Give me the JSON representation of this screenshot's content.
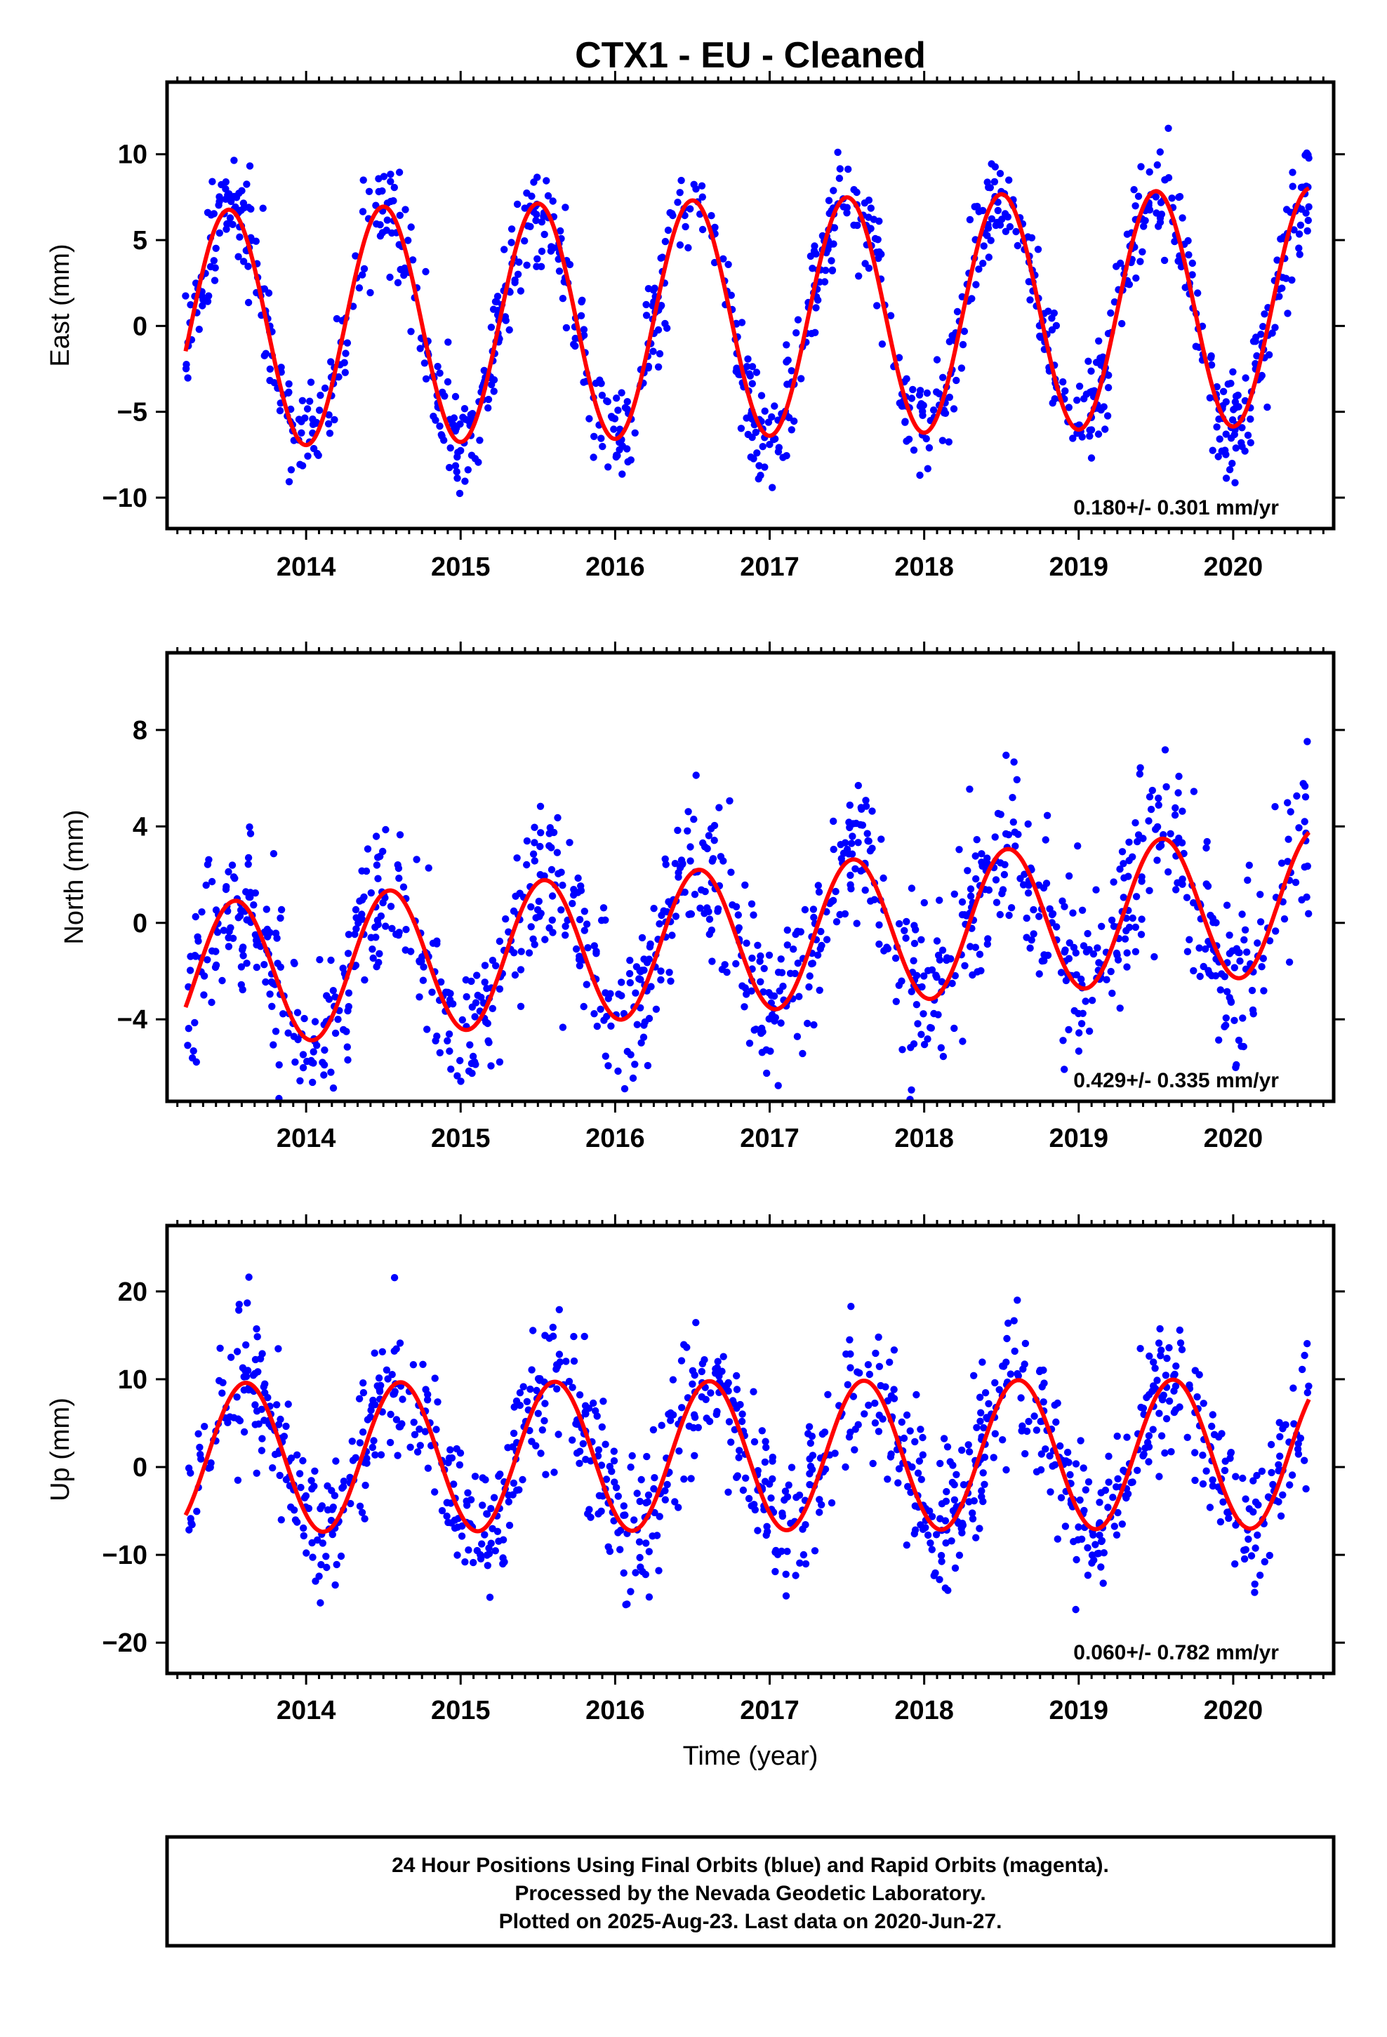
{
  "title": "CTX1  - EU - Cleaned",
  "x_axis_label": "Time (year)",
  "footer": {
    "line1": "24 Hour Positions Using Final Orbits (blue) and Rapid Orbits (magenta).",
    "line2": "Processed by the Nevada Geodetic Laboratory.",
    "line3": "Plotted on 2025-Aug-23. Last data on 2020-Jun-27."
  },
  "colors": {
    "points": "#0000ff",
    "fit": "#ff0000",
    "frame": "#000000"
  },
  "chart_data": [
    {
      "type": "scatter",
      "name": "east",
      "ylabel": "East (mm)",
      "rate": "0.180+/- 0.301 mm/yr",
      "xlim": [
        2013.1,
        2020.65
      ],
      "ylim": [
        -11.8,
        14.2
      ],
      "yticks": [
        -10,
        -5,
        0,
        5,
        10
      ],
      "xticks": [
        2014,
        2015,
        2016,
        2017,
        2018,
        2019,
        2020
      ],
      "data_range": [
        2013.22,
        2020.49
      ],
      "points_per_year": 150,
      "fit_model": {
        "offset": 0.5,
        "trend": 0.18,
        "annual_amplitude": 6.9,
        "peak_phase_fraction": 0.5
      },
      "scatter_std": 1.6,
      "seed": 11
    },
    {
      "type": "scatter",
      "name": "north",
      "ylabel": "North (mm)",
      "rate": "0.429+/- 0.335 mm/yr",
      "xlim": [
        2013.1,
        2020.65
      ],
      "ylim": [
        -7.4,
        11.2
      ],
      "yticks": [
        -4,
        0,
        4,
        8
      ],
      "xticks": [
        2014,
        2015,
        2016,
        2017,
        2018,
        2019,
        2020
      ],
      "data_range": [
        2013.22,
        2020.49
      ],
      "points_per_year": 150,
      "fit_model": {
        "offset": -0.6,
        "trend": 0.429,
        "annual_amplitude": 3.0,
        "peak_phase_fraction": 0.54
      },
      "scatter_std": 1.7,
      "seed": 23
    },
    {
      "type": "scatter",
      "name": "up",
      "ylabel": "Up (mm)",
      "rate": "0.060+/- 0.782 mm/yr",
      "xlim": [
        2013.1,
        2020.65
      ],
      "ylim": [
        -23.5,
        27.5
      ],
      "yticks": [
        -20,
        -10,
        0,
        10,
        20
      ],
      "xticks": [
        2014,
        2015,
        2016,
        2017,
        2018,
        2019,
        2020
      ],
      "data_range": [
        2013.22,
        2020.49
      ],
      "points_per_year": 150,
      "fit_model": {
        "offset": 1.3,
        "trend": 0.06,
        "annual_amplitude": 8.5,
        "peak_phase_fraction": 0.61
      },
      "scatter_std": 4.0,
      "seed": 37
    }
  ]
}
